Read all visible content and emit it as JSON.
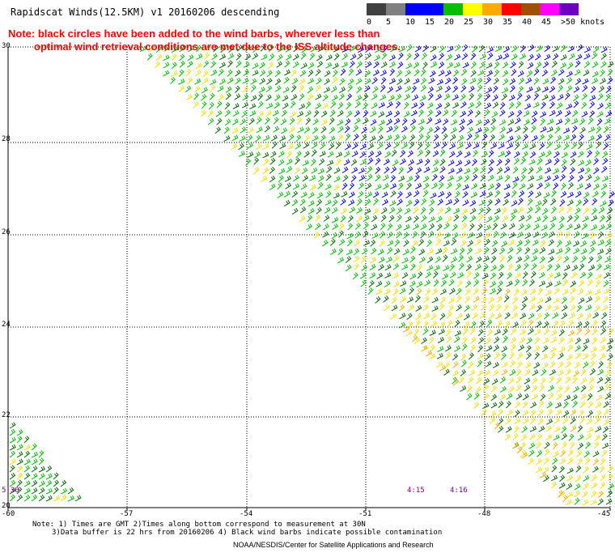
{
  "title": "Rapidscat Winds(12.5KM)  v1  20160206  descending",
  "note": {
    "line1": "Note: black circles have been added to the wind barbs, wherever less than",
    "line2": "optimal wind retrieval conditions are met due to the ISS altitude changes."
  },
  "legend": {
    "labels": [
      "0",
      "5",
      "10",
      "15",
      "20",
      "25",
      "30",
      "35",
      "40",
      "45",
      ">50 knots"
    ],
    "colors": [
      "#404040",
      "#808080",
      "#0000ff",
      "#0000ff",
      "#00c000",
      "#ffff00",
      "#ffaa00",
      "#ff0000",
      "#a05000",
      "#ff00ff",
      "#7000c0"
    ]
  },
  "axes": {
    "lat_labels": [
      "30",
      "28",
      "26",
      "24",
      "22",
      "20"
    ],
    "lon_labels": [
      "-60",
      "-57",
      "-54",
      "-51",
      "-48",
      "-45"
    ]
  },
  "pass_times": [
    "5:30",
    "4:15",
    "4:16"
  ],
  "footer": {
    "line1": "Note: 1) Times are GMT 2)Times along bottom correspond to measurement at 30N",
    "line2": "3)Data buffer is 22 hrs from 20160206 4) Black wind barbs indicate possible contamination",
    "line3": "NOAA/NESDIS/Center for Satellite Applications and Research"
  },
  "wind_colors": {
    "blue": "#0000ee",
    "green": "#00bb00",
    "darkgreen": "#006600",
    "yellow": "#f0e000",
    "orange": "#ffaa00",
    "red": "#ee0000"
  }
}
